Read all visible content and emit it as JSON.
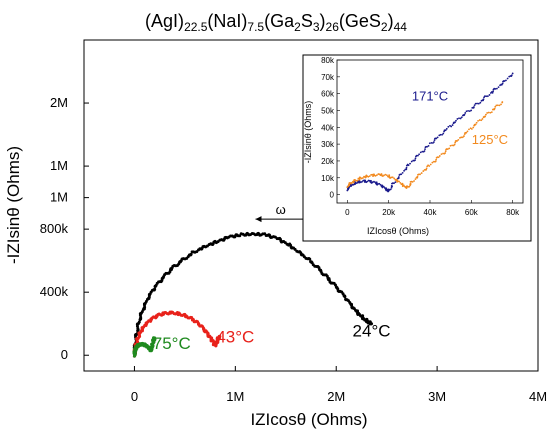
{
  "figure": {
    "title_parts": [
      {
        "t": "(AgI)",
        "sub": false
      },
      {
        "t": "22.5",
        "sub": true
      },
      {
        "t": "(NaI)",
        "sub": false
      },
      {
        "t": "7.5",
        "sub": true
      },
      {
        "t": "(Ga",
        "sub": false
      },
      {
        "t": "2",
        "sub": true
      },
      {
        "t": "S",
        "sub": false
      },
      {
        "t": "3",
        "sub": true
      },
      {
        "t": ")",
        "sub": false
      },
      {
        "t": "26",
        "sub": true
      },
      {
        "t": "(GeS",
        "sub": false
      },
      {
        "t": "2",
        "sub": true
      },
      {
        "t": ")",
        "sub": false
      },
      {
        "t": "44",
        "sub": true
      }
    ]
  },
  "chart_data": [
    {
      "type": "scatter",
      "xlabel": "IZIcosθ (Ohms)",
      "ylabel": "-IZIsinθ (Ohms)",
      "xlim": [
        -500000,
        4000000
      ],
      "ylim": [
        -100000,
        2000000
      ],
      "x_ticks": [
        {
          "v": 0,
          "label": "0"
        },
        {
          "v": 1000000,
          "label": "1M"
        },
        {
          "v": 2000000,
          "label": "2M"
        },
        {
          "v": 3000000,
          "label": "3M"
        },
        {
          "v": 4000000,
          "label": "4M"
        }
      ],
      "y_ticks": [
        {
          "v": 0,
          "label": "0"
        },
        {
          "v": 400000,
          "label": "400k"
        },
        {
          "v": 800000,
          "label": "800k"
        },
        {
          "v": 1000000,
          "label": "1M"
        },
        {
          "v": 1200000,
          "label": "1M"
        },
        {
          "v": 1600000,
          "label": "2M"
        }
      ],
      "annotations": {
        "arrow_label": "ω",
        "arrow_from": [
          1700000,
          800000
        ],
        "arrow_to": [
          1200000,
          800000
        ]
      },
      "series": [
        {
          "name": "24°C",
          "color": "#000000",
          "x": [
            0,
            10000,
            25000,
            50000,
            90000,
            140000,
            200000,
            280000,
            370000,
            470000,
            580000,
            700000,
            820000,
            940000,
            1060000,
            1180000,
            1300000,
            1420000,
            1530000,
            1640000,
            1740000,
            1840000,
            1930000,
            2020000,
            2100000,
            2170000,
            2230000,
            2280000,
            2320000,
            2350000
          ],
          "y": [
            0,
            80000,
            150000,
            230000,
            300000,
            370000,
            430000,
            490000,
            550000,
            600000,
            650000,
            690000,
            720000,
            750000,
            765000,
            770000,
            765000,
            740000,
            700000,
            650000,
            600000,
            540000,
            480000,
            420000,
            360000,
            300000,
            260000,
            230000,
            210000,
            200000
          ],
          "label_at": [
            2350000,
            120000
          ]
        },
        {
          "name": "43°C",
          "color": "#e8221b",
          "x": [
            0,
            8000,
            20000,
            40000,
            70000,
            110000,
            160000,
            220000,
            290000,
            370000,
            450000,
            530000,
            600000,
            660000,
            710000,
            750000,
            780000,
            800000,
            820000,
            840000
          ],
          "y": [
            0,
            40000,
            80000,
            120000,
            160000,
            195000,
            225000,
            250000,
            265000,
            270000,
            262000,
            245000,
            218000,
            185000,
            150000,
            115000,
            85000,
            60000,
            90000,
            120000
          ],
          "label_at": [
            1000000,
            80000
          ]
        },
        {
          "name": "75°C",
          "color": "#1f8a1f",
          "x": [
            0,
            5000,
            15000,
            30000,
            50000,
            75000,
            100000,
            125000,
            145000,
            160000,
            170000,
            180000,
            190000,
            200000
          ],
          "y": [
            0,
            25000,
            45000,
            60000,
            68000,
            70000,
            66000,
            58000,
            45000,
            30000,
            40000,
            70000,
            95000,
            110000
          ],
          "label_at": [
            370000,
            40000
          ]
        }
      ]
    },
    {
      "type": "scatter",
      "xlabel": "IZIcosθ (Ohms)",
      "ylabel": "-IZIsinθ (Ohms)",
      "xlim": [
        -5000,
        85000
      ],
      "ylim": [
        -5000,
        80000
      ],
      "x_ticks": [
        {
          "v": 0,
          "label": "0"
        },
        {
          "v": 20000,
          "label": "20k"
        },
        {
          "v": 40000,
          "label": "40k"
        },
        {
          "v": 60000,
          "label": "60k"
        },
        {
          "v": 80000,
          "label": "80k"
        }
      ],
      "y_ticks": [
        {
          "v": 0,
          "label": "0"
        },
        {
          "v": 10000,
          "label": "10k"
        },
        {
          "v": 20000,
          "label": "20k"
        },
        {
          "v": 30000,
          "label": "30k"
        },
        {
          "v": 40000,
          "label": "40k"
        },
        {
          "v": 50000,
          "label": "50k"
        },
        {
          "v": 60000,
          "label": "60k"
        },
        {
          "v": 70000,
          "label": "70k"
        },
        {
          "v": 80000,
          "label": "80k"
        }
      ],
      "series": [
        {
          "name": "171°C",
          "color": "#1a1a8c",
          "x": [
            0,
            1000,
            3000,
            5000,
            8000,
            11000,
            14000,
            17000,
            19000,
            20000,
            22000,
            26000,
            30000,
            35000,
            40000,
            45000,
            50000,
            55000,
            60000,
            65000,
            70000,
            75000,
            80000
          ],
          "y": [
            3000,
            5000,
            6500,
            7500,
            8000,
            7800,
            6800,
            5000,
            3000,
            2000,
            6000,
            12000,
            18000,
            24000,
            30000,
            35500,
            41000,
            46000,
            51000,
            56000,
            61000,
            66000,
            72000
          ],
          "label_at": [
            40000,
            56000
          ]
        },
        {
          "name": "125°C",
          "color": "#f28a1f",
          "x": [
            0,
            2000,
            5000,
            8000,
            12000,
            16000,
            20000,
            24000,
            27000,
            29000,
            31000,
            35000,
            40000,
            45000,
            50000,
            55000,
            60000,
            65000,
            70000,
            75000
          ],
          "y": [
            5000,
            7000,
            9000,
            10500,
            11500,
            11800,
            11000,
            8500,
            5500,
            4000,
            7000,
            12000,
            17500,
            23000,
            28500,
            34000,
            39500,
            45000,
            50000,
            55000
          ],
          "label_at": [
            69000,
            30000
          ]
        }
      ]
    }
  ]
}
